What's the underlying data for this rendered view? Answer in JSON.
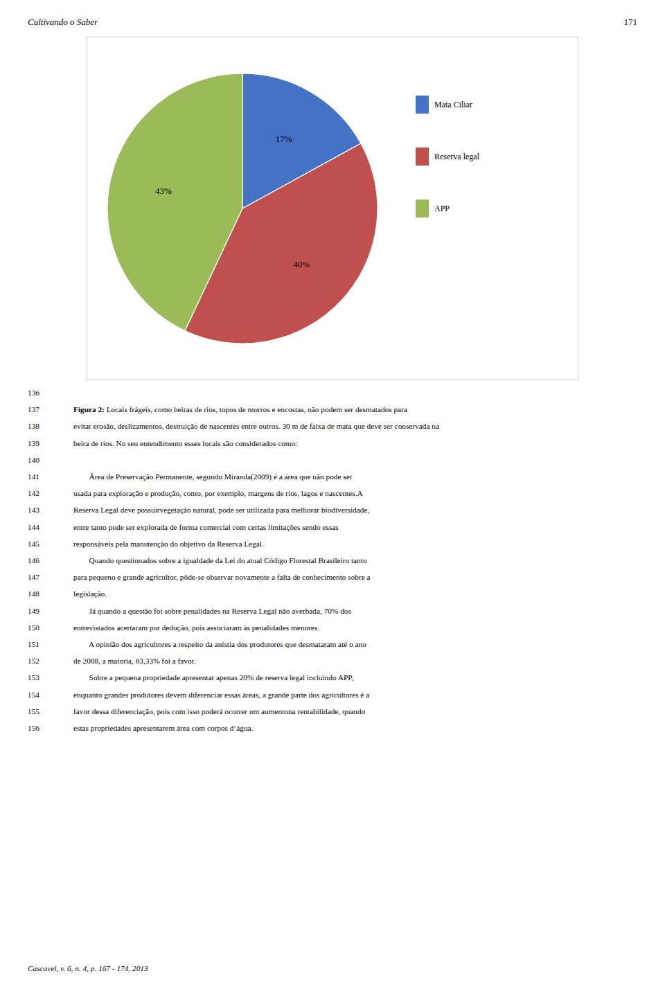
{
  "chart_data": {
    "type": "pie",
    "categories": [
      "Mata Ciliar",
      "Reserva legal",
      "APP"
    ],
    "values": [
      17,
      40,
      43
    ],
    "value_labels": [
      "17%",
      "40%",
      "43%"
    ],
    "colors": [
      "#4472C4",
      "#C0504D",
      "#9BBB59"
    ],
    "data_labels": true,
    "legend": "right"
  },
  "page": {
    "header_left": "Cultivando o Saber",
    "header_right": "171",
    "lines": [
      {
        "number": 136
      },
      {
        "number": 137,
        "bold": "Figura 2:",
        "text": " Locais frágeis, como beiras de rios, topos de morros e encostas, não podem ser desmatados para"
      },
      {
        "number": 138,
        "text": "evitar erosão, deslizamentos, destruição de nascentes entre outros. 30 m de faixa de mata que deve ser conservada na"
      },
      {
        "number": 139,
        "text": "beira de rios. No seu entendimento esses locais são considerados como:"
      },
      {
        "number": 140
      },
      {
        "number": 141,
        "text": "        Área de Preservação Permanente, segundo Miranda(2009) é a área que não pode ser"
      },
      {
        "number": 142,
        "text": "usada para exploração e produção, como, por exemplo, margens de rios, lagos e nascentes.A"
      },
      {
        "number": 143,
        "text": "Reserva Legal deve possuirvegetação natural, pode ser utilizada para melhorar biodiversidade,"
      },
      {
        "number": 144,
        "text": "entre tanto pode ser explorada de forma comercial com certas limitações sendo essas"
      },
      {
        "number": 145,
        "text": "responsáveis pela manutenção do objetivo da Reserva Legal."
      },
      {
        "number": 146,
        "text": "        Quando questionados sobre a igualdade da Lei do atual Código Florestal Brasileiro tanto"
      },
      {
        "number": 147,
        "text": "para pequeno e grande agricultor, pôde-se observar novamente a falta de conhecimento sobre a"
      },
      {
        "number": 148,
        "text": "legislação."
      },
      {
        "number": 149,
        "text": "        Já quando a questão foi sobre penalidades na Reserva Legal não averbada, 70% dos"
      },
      {
        "number": 150,
        "text": "entrevistados acertaram por dedução, pois associaram às penalidades menores."
      },
      {
        "number": 151,
        "text": "        A opinião dos agricultores a respeito da anistia dos produtores que desmataram até o ano"
      },
      {
        "number": 152,
        "text": "de 2008, a maioria, 63,33% foi a favor."
      },
      {
        "number": 153,
        "text": "        Sobre a pequena propriedade apresentar apenas 20% de reserva legal incluindo APP,"
      },
      {
        "number": 154,
        "text": "enquanto grandes produtores devem diferenciar essas áreas, a grande parte dos agricultores é a"
      },
      {
        "number": 155,
        "text": "favor dessa diferenciação, pois com isso poderá ocorrer um aumentona rentabilidade, quando"
      },
      {
        "number": 156,
        "text": "estas propriedades apresentarem área com corpos d’água."
      }
    ],
    "footer": "Cascavel, v. 6, n. 4, p. 167 - 174, 2013"
  }
}
